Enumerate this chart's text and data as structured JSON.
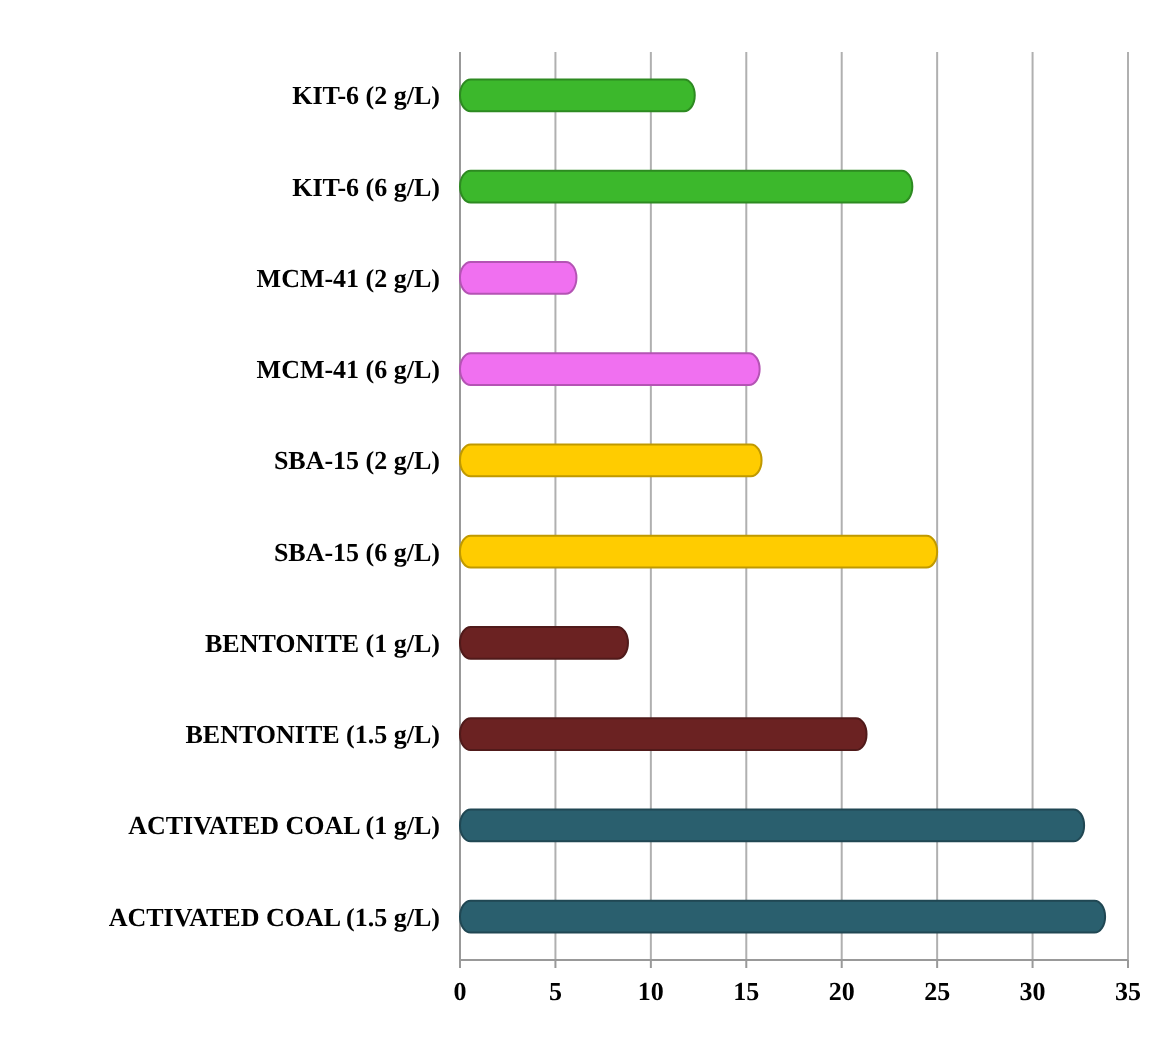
{
  "chart_data": {
    "type": "bar",
    "orientation": "horizontal",
    "categories": [
      "KIT-6 (2 g/L)",
      "KIT-6 (6 g/L)",
      "MCM-41 (2 g/L)",
      "MCM-41 (6 g/L)",
      "SBA-15 (2 g/L)",
      "SBA-15 (6 g/L)",
      "BENTONITE (1 g/L)",
      "BENTONITE (1.5 g/L)",
      "ACTIVATED COAL (1 g/L)",
      "ACTIVATED COAL (1.5 g/L)"
    ],
    "values": [
      12.3,
      23.7,
      6.1,
      15.7,
      15.8,
      25.0,
      8.8,
      21.3,
      32.7,
      33.8
    ],
    "colors": [
      "#3cb82c",
      "#3cb82c",
      "#f070f0",
      "#f070f0",
      "#ffcc00",
      "#ffcc00",
      "#6b2222",
      "#6b2222",
      "#2a5f6e",
      "#2a5f6e"
    ],
    "xlim": [
      0,
      35
    ],
    "xticks": [
      0,
      5,
      10,
      15,
      20,
      25,
      30,
      35
    ],
    "grid": "x"
  }
}
